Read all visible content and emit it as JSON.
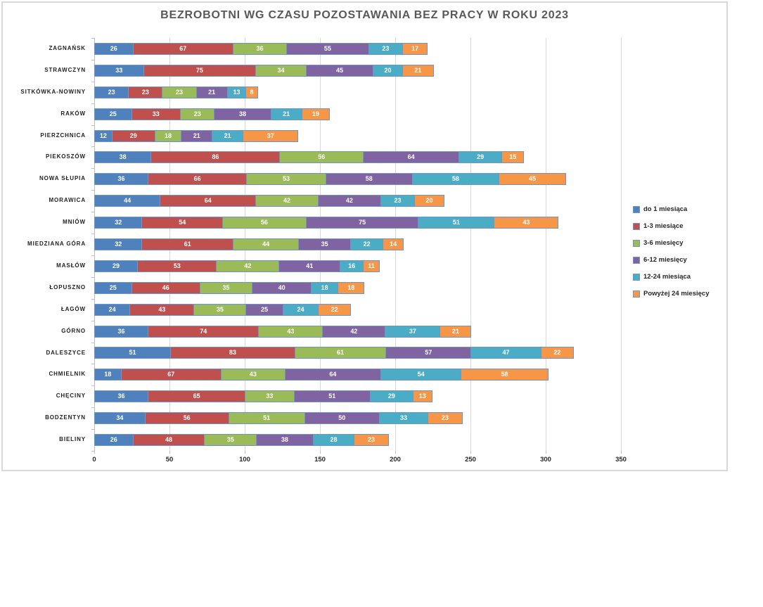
{
  "chart_data": {
    "type": "bar",
    "stacked": true,
    "orientation": "horizontal",
    "title": "BEZROBOTNI WG CZASU POZOSTAWANIA BEZ PRACY W ROKU 2023",
    "categories": [
      "ZAGNAŃSK",
      "STRAWCZYN",
      "SITKÓWKA-NOWINY",
      "RAKÓW",
      "PIERZCHNICA",
      "PIEKOSZÓW",
      "NOWA SŁUPIA",
      "MORAWICA",
      "MNIÓW",
      "MIEDZIANA GÓRA",
      "MASŁÓW",
      "ŁOPUSZNO",
      "ŁAGÓW",
      "GÓRNO",
      "DALESZYCE",
      "CHMIELNIK",
      "CHĘCINY",
      "BODZENTYN",
      "BIELINY"
    ],
    "series": [
      {
        "name": "do 1 miesiąca",
        "color": "#4F81BD",
        "values": [
          26,
          33,
          23,
          25,
          12,
          38,
          36,
          44,
          32,
          32,
          29,
          25,
          24,
          36,
          51,
          18,
          36,
          34,
          26
        ]
      },
      {
        "name": "1-3 miesiące",
        "color": "#C0504D",
        "values": [
          67,
          75,
          23,
          33,
          29,
          86,
          66,
          64,
          54,
          61,
          53,
          46,
          43,
          74,
          83,
          67,
          65,
          56,
          48
        ]
      },
      {
        "name": "3-6 miesięcy",
        "color": "#9BBB59",
        "values": [
          36,
          34,
          23,
          23,
          18,
          56,
          53,
          42,
          56,
          44,
          42,
          35,
          35,
          43,
          61,
          43,
          33,
          51,
          35
        ]
      },
      {
        "name": "6-12 miesięcy",
        "color": "#8064A2",
        "values": [
          55,
          45,
          21,
          38,
          21,
          64,
          58,
          42,
          75,
          35,
          41,
          40,
          25,
          42,
          57,
          64,
          51,
          50,
          38
        ]
      },
      {
        "name": "12-24 miesiąca",
        "color": "#4BACC6",
        "values": [
          23,
          20,
          13,
          21,
          21,
          29,
          58,
          23,
          51,
          22,
          16,
          18,
          24,
          37,
          47,
          54,
          29,
          33,
          28
        ]
      },
      {
        "name": "Powyżej 24 miesięcy",
        "color": "#F79646",
        "values": [
          17,
          21,
          8,
          19,
          37,
          15,
          45,
          20,
          43,
          14,
          11,
          18,
          22,
          21,
          22,
          58,
          13,
          23,
          23
        ]
      }
    ],
    "xlim": [
      0,
      350
    ],
    "xticks": [
      0,
      50,
      100,
      150,
      200,
      250,
      300,
      350
    ],
    "grid": true,
    "legend_position": "right",
    "value_labels": "inside-white"
  },
  "style_colors": {
    "segment_border": "#7196C6",
    "grid_line": "#D9D9D9",
    "frame_border": "#D9D9D9",
    "title_color": "#595959"
  }
}
